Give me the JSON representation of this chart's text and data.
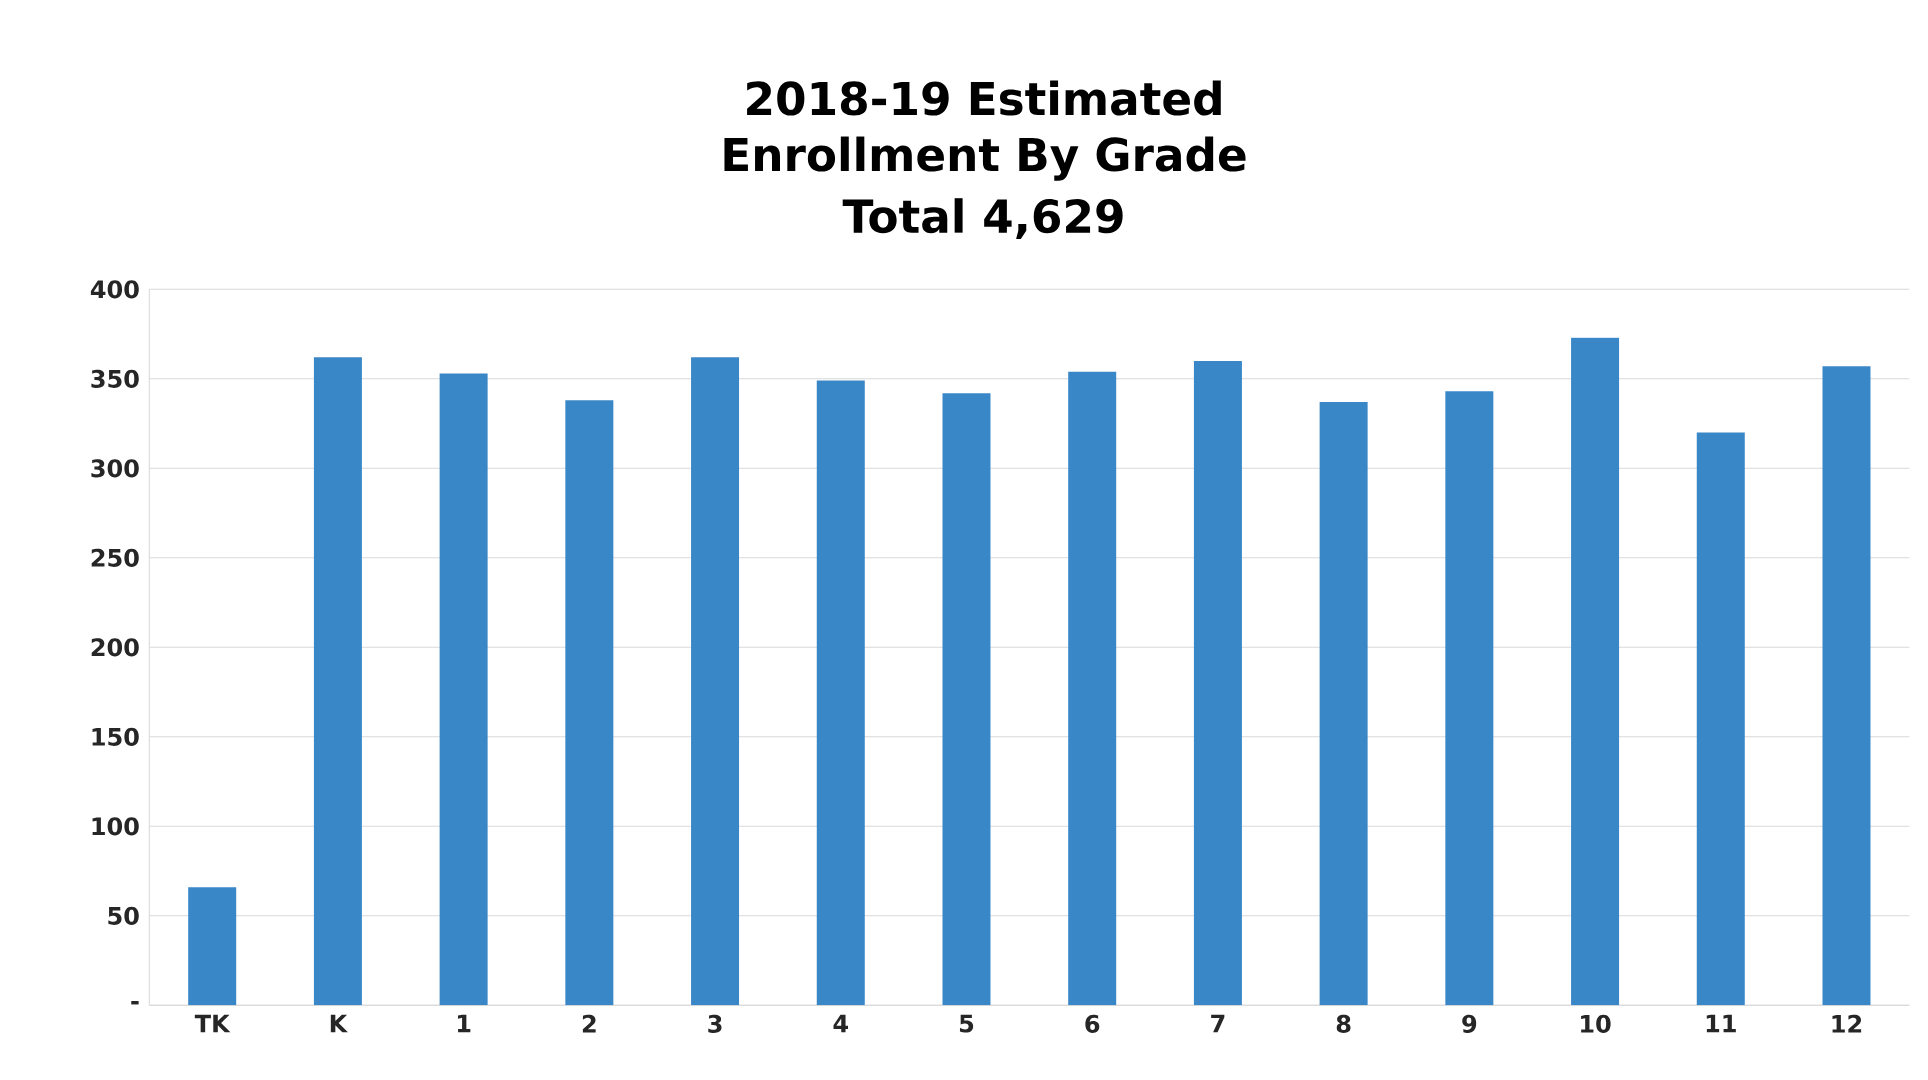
{
  "chart_data": {
    "type": "bar",
    "title": "2018-19 Estimated Enrollment By Grade",
    "subtitle": "Total 4,629",
    "categories": [
      "TK",
      "K",
      "1",
      "2",
      "3",
      "4",
      "5",
      "6",
      "7",
      "8",
      "9",
      "10",
      "11",
      "12"
    ],
    "values": [
      66,
      362,
      353,
      338,
      362,
      349,
      342,
      354,
      360,
      337,
      343,
      373,
      320,
      357
    ],
    "color": "#3a87c8",
    "ylim": [
      0,
      400
    ],
    "yticks": [
      {
        "value": 0,
        "label": "-"
      },
      50,
      100,
      150,
      200,
      250,
      300,
      350,
      400
    ],
    "grid": "y"
  }
}
